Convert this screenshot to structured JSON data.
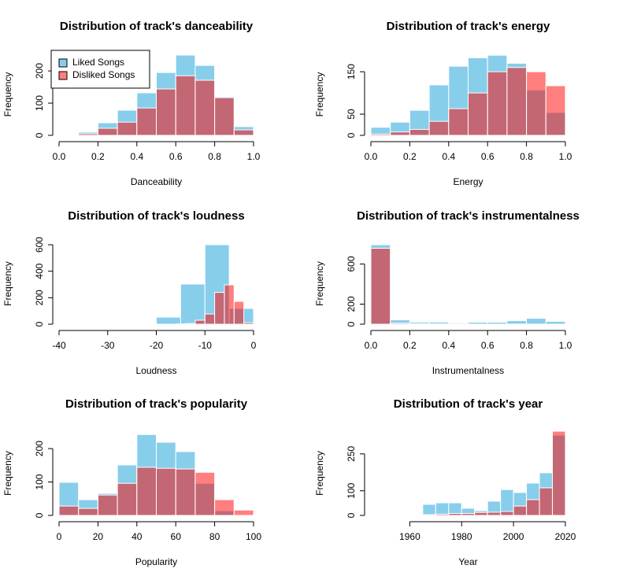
{
  "chart_data": [
    {
      "type": "histogram",
      "title": "Distribution of track's danceability",
      "xlabel": "Danceability",
      "ylabel": "Frequency",
      "bins": [
        0,
        0.1,
        0.2,
        0.3,
        0.4,
        0.5,
        0.6,
        0.7,
        0.8,
        0.9,
        1
      ],
      "series": [
        {
          "name": "Liked Songs",
          "color": "#87CEEB",
          "values": [
            2,
            10,
            39,
            78,
            132,
            195,
            249,
            217,
            120,
            27
          ]
        },
        {
          "name": "Disliked Songs",
          "color": "rgba(255,0,0,0.5)",
          "values": [
            0,
            5,
            22,
            41,
            85,
            144,
            185,
            171,
            117,
            17
          ]
        }
      ],
      "legend": "topleft",
      "xlim": [
        0,
        1
      ],
      "ylim": [
        0,
        254
      ],
      "xticks": [
        {
          "value": 0,
          "label": "0.0"
        },
        0.2,
        0.4,
        0.6,
        0.8,
        {
          "value": 1,
          "label": "1.0"
        }
      ],
      "yticks": [
        0,
        100,
        200
      ]
    },
    {
      "type": "histogram",
      "title": "Distribution of track's energy",
      "xlabel": "Energy",
      "ylabel": "Frequency",
      "bins": [
        0,
        0.1,
        0.2,
        0.3,
        0.4,
        0.5,
        0.6,
        0.7,
        0.8,
        0.9,
        1
      ],
      "series": [
        {
          "color": "#87CEEB",
          "values": [
            19,
            31,
            59,
            119,
            163,
            183,
            189,
            170,
            107,
            54
          ]
        },
        {
          "color": "rgba(255,0,0,0.5)",
          "values": [
            3,
            8,
            14,
            33,
            63,
            100,
            150,
            160,
            150,
            117
          ]
        }
      ],
      "xlim": [
        0,
        1
      ],
      "ylim": [
        0,
        193
      ],
      "xticks": [
        {
          "value": 0,
          "label": "0.0"
        },
        0.2,
        0.4,
        0.6,
        0.8,
        {
          "value": 1,
          "label": "1.0"
        }
      ],
      "yticks": [
        0,
        50,
        150
      ]
    },
    {
      "type": "histogram",
      "title": "Distribution of track's loudness",
      "xlabel": "Loudness",
      "ylabel": "Frequency",
      "series": [
        {
          "color": "#87CEEB",
          "bins": [
            -25,
            -20,
            -15,
            -10,
            -5,
            0
          ],
          "values": [
            6,
            53,
            303,
            600,
            119
          ]
        },
        {
          "color": "rgba(255,0,0,0.5)",
          "bins": [
            -16,
            -14,
            -12,
            -10,
            -8,
            -6,
            -4,
            -2,
            0
          ],
          "values": [
            2,
            5,
            30,
            77,
            240,
            297,
            172,
            12
          ]
        }
      ],
      "xlim": [
        -40,
        0
      ],
      "ylim": [
        0,
        612
      ],
      "xticks": [
        -40,
        -30,
        -20,
        -10,
        0
      ],
      "yticks": [
        0,
        200,
        400,
        600
      ]
    },
    {
      "type": "histogram",
      "title": "Distribution of track's instrumentalness",
      "xlabel": "Instrumentalness",
      "ylabel": "Frequency",
      "bins": [
        0,
        0.1,
        0.2,
        0.3,
        0.4,
        0.5,
        0.6,
        0.7,
        0.8,
        0.9,
        1
      ],
      "series": [
        {
          "color": "#87CEEB",
          "values": [
            792,
            43,
            20,
            20,
            12,
            20,
            20,
            35,
            59,
            28
          ]
        },
        {
          "color": "rgba(255,0,0,0.5)",
          "values": [
            757,
            10,
            4,
            2,
            2,
            1,
            1,
            1,
            1,
            0
          ]
        }
      ],
      "xlim": [
        0,
        1
      ],
      "ylim": [
        0,
        808
      ],
      "xticks": [
        {
          "value": 0,
          "label": "0.0"
        },
        0.2,
        0.4,
        0.6,
        0.8,
        {
          "value": 1,
          "label": "1.0"
        }
      ],
      "yticks": [
        0,
        200,
        600
      ]
    },
    {
      "type": "histogram",
      "title": "Distribution of track's popularity",
      "xlabel": "Popularity",
      "ylabel": "Frequency",
      "bins": [
        0,
        10,
        20,
        30,
        40,
        50,
        60,
        70,
        80,
        90,
        100
      ],
      "series": [
        {
          "color": "#87CEEB",
          "values": [
            99,
            47,
            66,
            151,
            242,
            219,
            191,
            96,
            14,
            0
          ]
        },
        {
          "color": "rgba(255,0,0,0.5)",
          "values": [
            28,
            21,
            61,
            96,
            144,
            141,
            139,
            129,
            47,
            16
          ]
        }
      ],
      "xlim": [
        0,
        100
      ],
      "ylim": [
        0,
        252
      ],
      "xticks": [
        0,
        20,
        40,
        60,
        80,
        100
      ],
      "yticks": [
        0,
        100,
        200
      ]
    },
    {
      "type": "histogram",
      "title": "Distribution of track's year",
      "xlabel": "Year",
      "ylabel": "Frequency",
      "bins": [
        1960,
        1965,
        1970,
        1975,
        1980,
        1985,
        1990,
        1995,
        2000,
        2005,
        2010,
        2015,
        2020
      ],
      "series": [
        {
          "color": "#87CEEB",
          "values": [
            3,
            45,
            51,
            51,
            29,
            19,
            58,
            105,
            93,
            131,
            173,
            326
          ]
        },
        {
          "color": "rgba(255,0,0,0.5)",
          "values": [
            1,
            3,
            5,
            8,
            8,
            12,
            13,
            16,
            38,
            64,
            112,
            342
          ]
        }
      ],
      "xlim": [
        1945,
        2020
      ],
      "ylim": [
        0,
        342
      ],
      "xticks": [
        1960,
        1980,
        2000,
        2020
      ],
      "yticks": [
        0,
        100,
        250
      ]
    }
  ]
}
